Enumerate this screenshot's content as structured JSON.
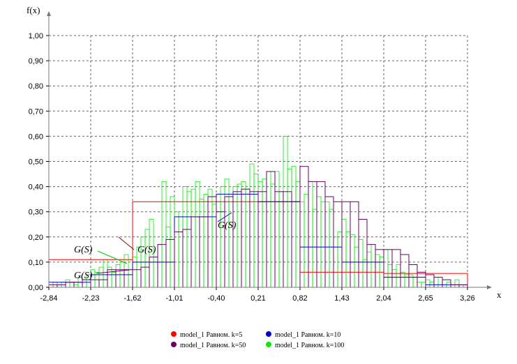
{
  "chart_data": {
    "type": "bar",
    "xlabel": "x",
    "ylabel": "f(x)",
    "xlim": [
      -2.84,
      3.26
    ],
    "ylim": [
      0,
      1.0
    ],
    "xticks": [
      "-2,84",
      "-2,23",
      "-1,62",
      "-1,01",
      "-0,40",
      "0,21",
      "0,82",
      "1,43",
      "2,04",
      "2,65",
      "3,26"
    ],
    "yticks": [
      "0,00",
      "0,10",
      "0,20",
      "0,30",
      "0,40",
      "0,50",
      "0,60",
      "0,70",
      "0,80",
      "0,90",
      "1,00"
    ],
    "grid": true,
    "legend_position": "bottom",
    "series": [
      {
        "name": "model_1 Равном. k=5",
        "color": "#ff0000",
        "bins": 5,
        "values": [
          0.11,
          0.34,
          0.34,
          0.06,
          0.055
        ]
      },
      {
        "name": "model_1 Равном. k=10",
        "color": "#0000cc",
        "bins": 10,
        "values": [
          0.02,
          0.05,
          0.1,
          0.28,
          0.37,
          0.34,
          0.16,
          0.1,
          0.04,
          0.01
        ]
      },
      {
        "name": "model_1 Равном. k=50",
        "color": "#660066",
        "bins": 50,
        "values": [
          0.01,
          0.01,
          0.02,
          0.02,
          0.03,
          0.03,
          0.03,
          0.07,
          0.07,
          0.07,
          0.07,
          0.08,
          0.12,
          0.17,
          0.19,
          0.22,
          0.23,
          0.28,
          0.28,
          0.36,
          0.3,
          0.36,
          0.38,
          0.39,
          0.38,
          0.38,
          0.46,
          0.38,
          0.38,
          0.34,
          0.48,
          0.42,
          0.42,
          0.36,
          0.34,
          0.34,
          0.34,
          0.27,
          0.17,
          0.15,
          0.15,
          0.15,
          0.13,
          0.09,
          0.06,
          0.05,
          0.04,
          0.03,
          0.01,
          0.01
        ]
      },
      {
        "name": "model_1 Равном. k=100",
        "color": "#00ee00",
        "bins": 100,
        "values": [
          0.01,
          0.02,
          0.01,
          0.02,
          0.03,
          0.02,
          0.01,
          0.04,
          0.03,
          0.05,
          0.07,
          0.06,
          0.08,
          0.11,
          0.08,
          0.06,
          0.09,
          0.1,
          0.13,
          0.07,
          0.12,
          0.16,
          0.2,
          0.23,
          0.27,
          0.12,
          0.17,
          0.42,
          0.24,
          0.36,
          0.3,
          0.28,
          0.4,
          0.38,
          0.39,
          0.42,
          0.35,
          0.37,
          0.39,
          0.33,
          0.34,
          0.4,
          0.43,
          0.36,
          0.4,
          0.41,
          0.42,
          0.39,
          0.49,
          0.45,
          0.42,
          0.43,
          0.46,
          0.41,
          0.46,
          0.38,
          0.6,
          0.47,
          0.48,
          0.42,
          0.34,
          0.37,
          0.42,
          0.31,
          0.36,
          0.34,
          0.34,
          0.31,
          0.2,
          0.22,
          0.27,
          0.22,
          0.21,
          0.16,
          0.19,
          0.11,
          0.14,
          0.17,
          0.13,
          0.12,
          0.15,
          0.09,
          0.07,
          0.09,
          0.06,
          0.05,
          0.05,
          0.04,
          0.02,
          0.02,
          0.03,
          0.02,
          0.04,
          0.01,
          0.01,
          0.02,
          0.01,
          0.03,
          0.01,
          0.01
        ]
      }
    ],
    "annotations": [
      "G(S)",
      "G(S)",
      "G(S)",
      "G(S)"
    ]
  }
}
